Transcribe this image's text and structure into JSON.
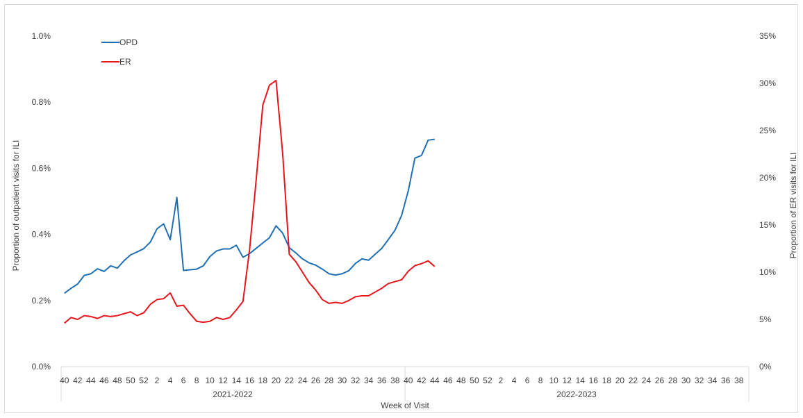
{
  "chart_data": {
    "type": "line",
    "title": "",
    "xlabel": "Week of Visit",
    "ylabel_left": "Proportion of outpatient visits for ILI",
    "ylabel_right": "Proportion of ER visits for ILI",
    "left_axis": {
      "min": 0,
      "max": 1.0,
      "ticks": [
        "0.0%",
        "0.2%",
        "0.4%",
        "0.6%",
        "0.8%",
        "1.0%"
      ]
    },
    "right_axis": {
      "min": 0,
      "max": 35,
      "ticks": [
        "0%",
        "5%",
        "10%",
        "15%",
        "20%",
        "25%",
        "30%",
        "35%"
      ]
    },
    "week_tick_labels": [
      "40",
      "42",
      "44",
      "46",
      "48",
      "50",
      "52",
      "2",
      "4",
      "6",
      "8",
      "10",
      "12",
      "14",
      "16",
      "18",
      "20",
      "22",
      "24",
      "26",
      "28",
      "30",
      "32",
      "34",
      "36",
      "38",
      "40",
      "42",
      "44",
      "46",
      "48",
      "50",
      "52",
      "2",
      "4",
      "6",
      "8",
      "10",
      "12",
      "14",
      "16",
      "18",
      "20",
      "22",
      "24",
      "26",
      "28",
      "30",
      "32",
      "34",
      "36",
      "38"
    ],
    "season_labels": [
      "2021-2022",
      "2022-2023"
    ],
    "grid": false,
    "legend_position": "top-left",
    "series": [
      {
        "name": "OPD",
        "axis": "left",
        "color": "#1f6fb4",
        "values": [
          0.222,
          0.237,
          0.25,
          0.276,
          0.281,
          0.296,
          0.288,
          0.305,
          0.298,
          0.32,
          0.338,
          0.347,
          0.357,
          0.377,
          0.417,
          0.432,
          0.384,
          0.512,
          0.291,
          0.293,
          0.295,
          0.305,
          0.333,
          0.35,
          0.356,
          0.356,
          0.367,
          0.331,
          0.342,
          0.358,
          0.374,
          0.39,
          0.426,
          0.404,
          0.36,
          0.344,
          0.326,
          0.314,
          0.307,
          0.295,
          0.281,
          0.277,
          0.281,
          0.29,
          0.312,
          0.326,
          0.322,
          0.34,
          0.358,
          0.385,
          0.413,
          0.458,
          0.532,
          0.631,
          0.639,
          0.685,
          0.688
        ]
      },
      {
        "name": "ER",
        "axis": "right",
        "color": "#e8141c",
        "values": [
          4.6,
          5.2,
          5.0,
          5.4,
          5.3,
          5.1,
          5.4,
          5.3,
          5.4,
          5.6,
          5.8,
          5.4,
          5.7,
          6.6,
          7.1,
          7.2,
          7.8,
          6.4,
          6.5,
          5.6,
          4.8,
          4.7,
          4.8,
          5.2,
          5.0,
          5.2,
          6.0,
          6.9,
          12.4,
          19.8,
          27.7,
          29.8,
          30.3,
          22.6,
          11.9,
          11.1,
          10.0,
          8.9,
          8.1,
          7.1,
          6.7,
          6.8,
          6.7,
          7.0,
          7.4,
          7.5,
          7.5,
          7.9,
          8.3,
          8.8,
          9.0,
          9.2,
          10.1,
          10.7,
          10.9,
          11.2,
          10.6
        ]
      }
    ]
  }
}
